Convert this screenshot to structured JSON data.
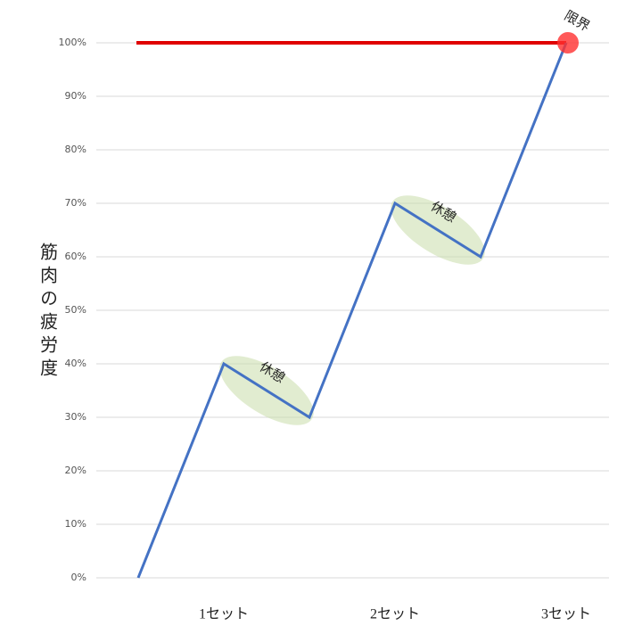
{
  "chart_data": {
    "type": "line",
    "ylabel": "筋肉の疲労度",
    "categories": [
      null,
      "1セット",
      null,
      "2セット",
      null,
      "3セット"
    ],
    "series": [
      {
        "color": "#4472c4",
        "values": [
          0,
          40,
          30,
          70,
          60,
          100
        ]
      }
    ],
    "limit_line": {
      "value": 100,
      "color": "#e00000"
    },
    "annotations": [
      "休憩",
      "休憩",
      "限界"
    ],
    "ylim": [
      0,
      100
    ],
    "yticks": [
      {
        "value": 0,
        "label": "0%"
      },
      {
        "value": 10,
        "label": "10%"
      },
      {
        "value": 20,
        "label": "20%"
      },
      {
        "value": 30,
        "label": "30%"
      },
      {
        "value": 40,
        "label": "40%"
      },
      {
        "value": 50,
        "label": "50%"
      },
      {
        "value": 60,
        "label": "60%"
      },
      {
        "value": 70,
        "label": "70%"
      },
      {
        "value": 80,
        "label": "80%"
      },
      {
        "value": 90,
        "label": "90%"
      },
      {
        "value": 100,
        "label": "100%"
      }
    ],
    "grid": true
  }
}
